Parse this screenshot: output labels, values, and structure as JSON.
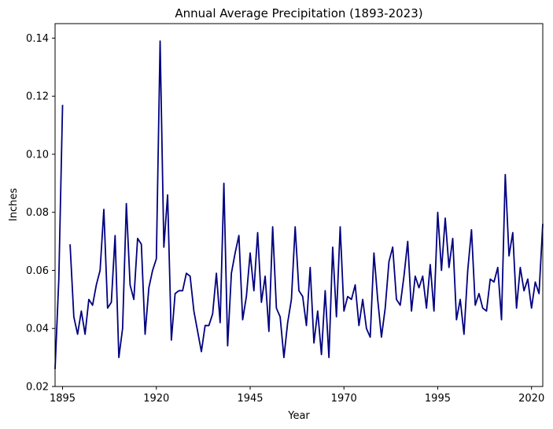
{
  "chart_data": {
    "type": "line",
    "title": "Annual Average Precipitation (1893-2023)",
    "xlabel": "Year",
    "ylabel": "Inches",
    "xlim": [
      1893,
      2023
    ],
    "ylim": [
      0.02,
      0.145
    ],
    "xticks": [
      1895,
      1920,
      1945,
      1970,
      1995,
      2020
    ],
    "yticks": [
      0.02,
      0.04,
      0.06,
      0.08,
      0.1,
      0.12,
      0.14
    ],
    "ytick_labels": [
      "0.02",
      "0.04",
      "0.06",
      "0.08",
      "0.10",
      "0.12",
      "0.14"
    ],
    "grid": false,
    "line_color": "#00007f",
    "series": [
      {
        "x": [
          1893,
          1894,
          1895,
          1896,
          1897,
          1898,
          1899,
          1900,
          1901,
          1902,
          1903,
          1904,
          1905,
          1906,
          1907,
          1908,
          1909,
          1910,
          1911,
          1912,
          1913,
          1914,
          1915,
          1916,
          1917,
          1918,
          1919,
          1920,
          1921,
          1922,
          1923,
          1924,
          1925,
          1926,
          1927,
          1928,
          1929,
          1930,
          1931,
          1932,
          1933,
          1934,
          1935,
          1936,
          1937,
          1938,
          1939,
          1940,
          1941,
          1942,
          1943,
          1944,
          1945,
          1946,
          1947,
          1948,
          1949,
          1950,
          1951,
          1952,
          1953,
          1954,
          1955,
          1956,
          1957,
          1958,
          1959,
          1960,
          1961,
          1962,
          1963,
          1964,
          1965,
          1966,
          1967,
          1968,
          1969,
          1970,
          1971,
          1972,
          1973,
          1974,
          1975,
          1976,
          1977,
          1978,
          1979,
          1980,
          1981,
          1982,
          1983,
          1984,
          1985,
          1986,
          1987,
          1988,
          1989,
          1990,
          1991,
          1992,
          1993,
          1994,
          1995,
          1996,
          1997,
          1998,
          1999,
          2000,
          2001,
          2002,
          2003,
          2004,
          2005,
          2006,
          2007,
          2008,
          2009,
          2010,
          2011,
          2012,
          2013,
          2014,
          2015,
          2016,
          2017,
          2018,
          2019,
          2020,
          2021,
          2022,
          2023
        ],
        "y": [
          0.026,
          0.057,
          0.117,
          null,
          0.069,
          0.044,
          0.038,
          0.046,
          0.038,
          0.05,
          0.048,
          0.055,
          0.06,
          0.081,
          0.047,
          0.049,
          0.072,
          0.03,
          0.04,
          0.083,
          0.055,
          0.05,
          0.071,
          0.069,
          0.038,
          0.054,
          0.06,
          0.064,
          0.139,
          0.068,
          0.086,
          0.036,
          0.052,
          0.053,
          0.053,
          0.059,
          0.058,
          0.046,
          0.039,
          0.032,
          0.041,
          0.041,
          0.045,
          0.059,
          0.042,
          0.09,
          0.034,
          0.059,
          0.066,
          0.072,
          0.043,
          0.051,
          0.066,
          0.053,
          0.073,
          0.049,
          0.058,
          0.039,
          0.075,
          0.047,
          0.044,
          0.03,
          0.042,
          0.05,
          0.075,
          0.053,
          0.051,
          0.041,
          0.061,
          0.035,
          0.046,
          0.031,
          0.053,
          0.03,
          0.068,
          0.044,
          0.075,
          0.046,
          0.051,
          0.05,
          0.055,
          0.041,
          0.05,
          0.04,
          0.037,
          0.066,
          0.05,
          0.037,
          0.047,
          0.063,
          0.068,
          0.05,
          0.048,
          0.058,
          0.07,
          0.046,
          0.058,
          0.054,
          0.058,
          0.047,
          0.062,
          0.046,
          0.08,
          0.06,
          0.078,
          0.061,
          0.071,
          0.043,
          0.05,
          0.038,
          0.06,
          0.074,
          0.048,
          0.052,
          0.047,
          0.046,
          0.057,
          0.056,
          0.061,
          0.043,
          0.093,
          0.065,
          0.073,
          0.047,
          0.061,
          0.053,
          0.057,
          0.047,
          0.056,
          0.052,
          0.076
        ]
      }
    ]
  }
}
